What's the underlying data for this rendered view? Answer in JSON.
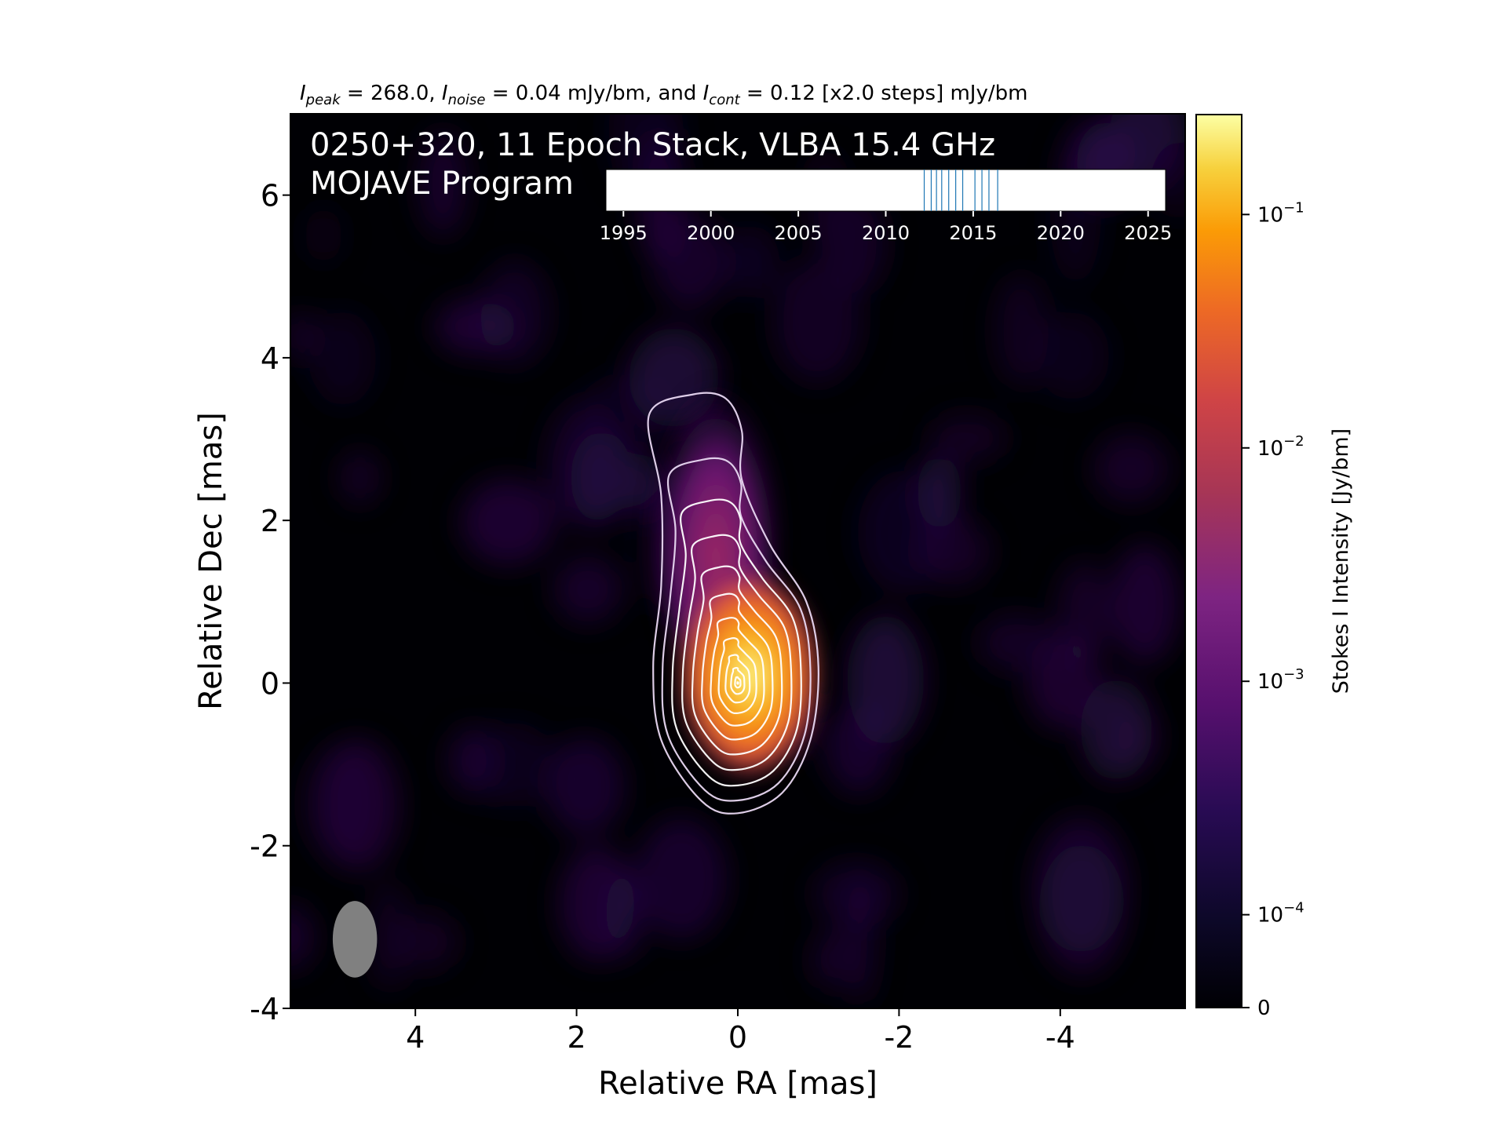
{
  "chart_data": {
    "type": "heatmap",
    "title_parts": {
      "peak_sym": "I",
      "peak_sub": "peak",
      "peak_val": " = 268.0, ",
      "noise_sym": "I",
      "noise_sub": "noise",
      "noise_val": " = 0.04 mJy/bm, and ",
      "cont_sym": "I",
      "cont_sub": "cont",
      "cont_val": " = 0.12 [x2.0 steps] mJy/bm"
    },
    "annotation_line1": "0250+320, 11 Epoch Stack, VLBA 15.4 GHz",
    "annotation_line2": "MOJAVE Program",
    "xlabel": "Relative RA [mas]",
    "ylabel": "Relative Dec [mas]",
    "xlim": [
      5.55,
      -5.55
    ],
    "ylim": [
      -4,
      7
    ],
    "x_ticks": [
      4,
      2,
      0,
      -2,
      -4
    ],
    "x_tick_labels": [
      "4",
      "2",
      "0",
      "-2",
      "-4"
    ],
    "y_ticks": [
      -4,
      -2,
      0,
      2,
      4,
      6
    ],
    "y_tick_labels": [
      "-4",
      "-2",
      "0",
      "2",
      "4",
      "6"
    ],
    "colormap": "inferno",
    "colorbar": {
      "label": "Stokes I Intensity [Jy/bm]",
      "scale": "log",
      "ticks": [
        {
          "value": 0,
          "label": "0"
        },
        {
          "value": 0.0001,
          "label": "10",
          "exp": "−4"
        },
        {
          "value": 0.001,
          "label": "10",
          "exp": "−3"
        },
        {
          "value": 0.01,
          "label": "10",
          "exp": "−2"
        },
        {
          "value": 0.1,
          "label": "10",
          "exp": "−1"
        }
      ],
      "max": 0.268
    },
    "peak_position": [
      0,
      0
    ],
    "peak_intensity_jy": 0.268,
    "contour_levels_mjy": [
      0.12,
      0.24,
      0.48,
      0.96,
      1.92,
      3.84,
      7.68,
      15.36,
      30.72,
      61.44,
      122.88,
      245.76
    ],
    "beam": {
      "center_x": 4.75,
      "center_y": -3.15,
      "width_mas": 0.55,
      "height_mas": 0.95,
      "color": "#808080"
    },
    "epoch_timeline": {
      "xlim": [
        1994,
        2026
      ],
      "ticks": [
        1995,
        2000,
        2005,
        2010,
        2015,
        2020,
        2025
      ],
      "tick_labels": [
        "1995",
        "2000",
        "2005",
        "2010",
        "2015",
        "2020",
        "2025"
      ],
      "epochs": [
        2012.2,
        2012.6,
        2012.9,
        2013.2,
        2013.6,
        2014.0,
        2014.4,
        2015.1,
        2015.5,
        2015.9,
        2016.4
      ],
      "line_color": "#1f77b4"
    }
  }
}
